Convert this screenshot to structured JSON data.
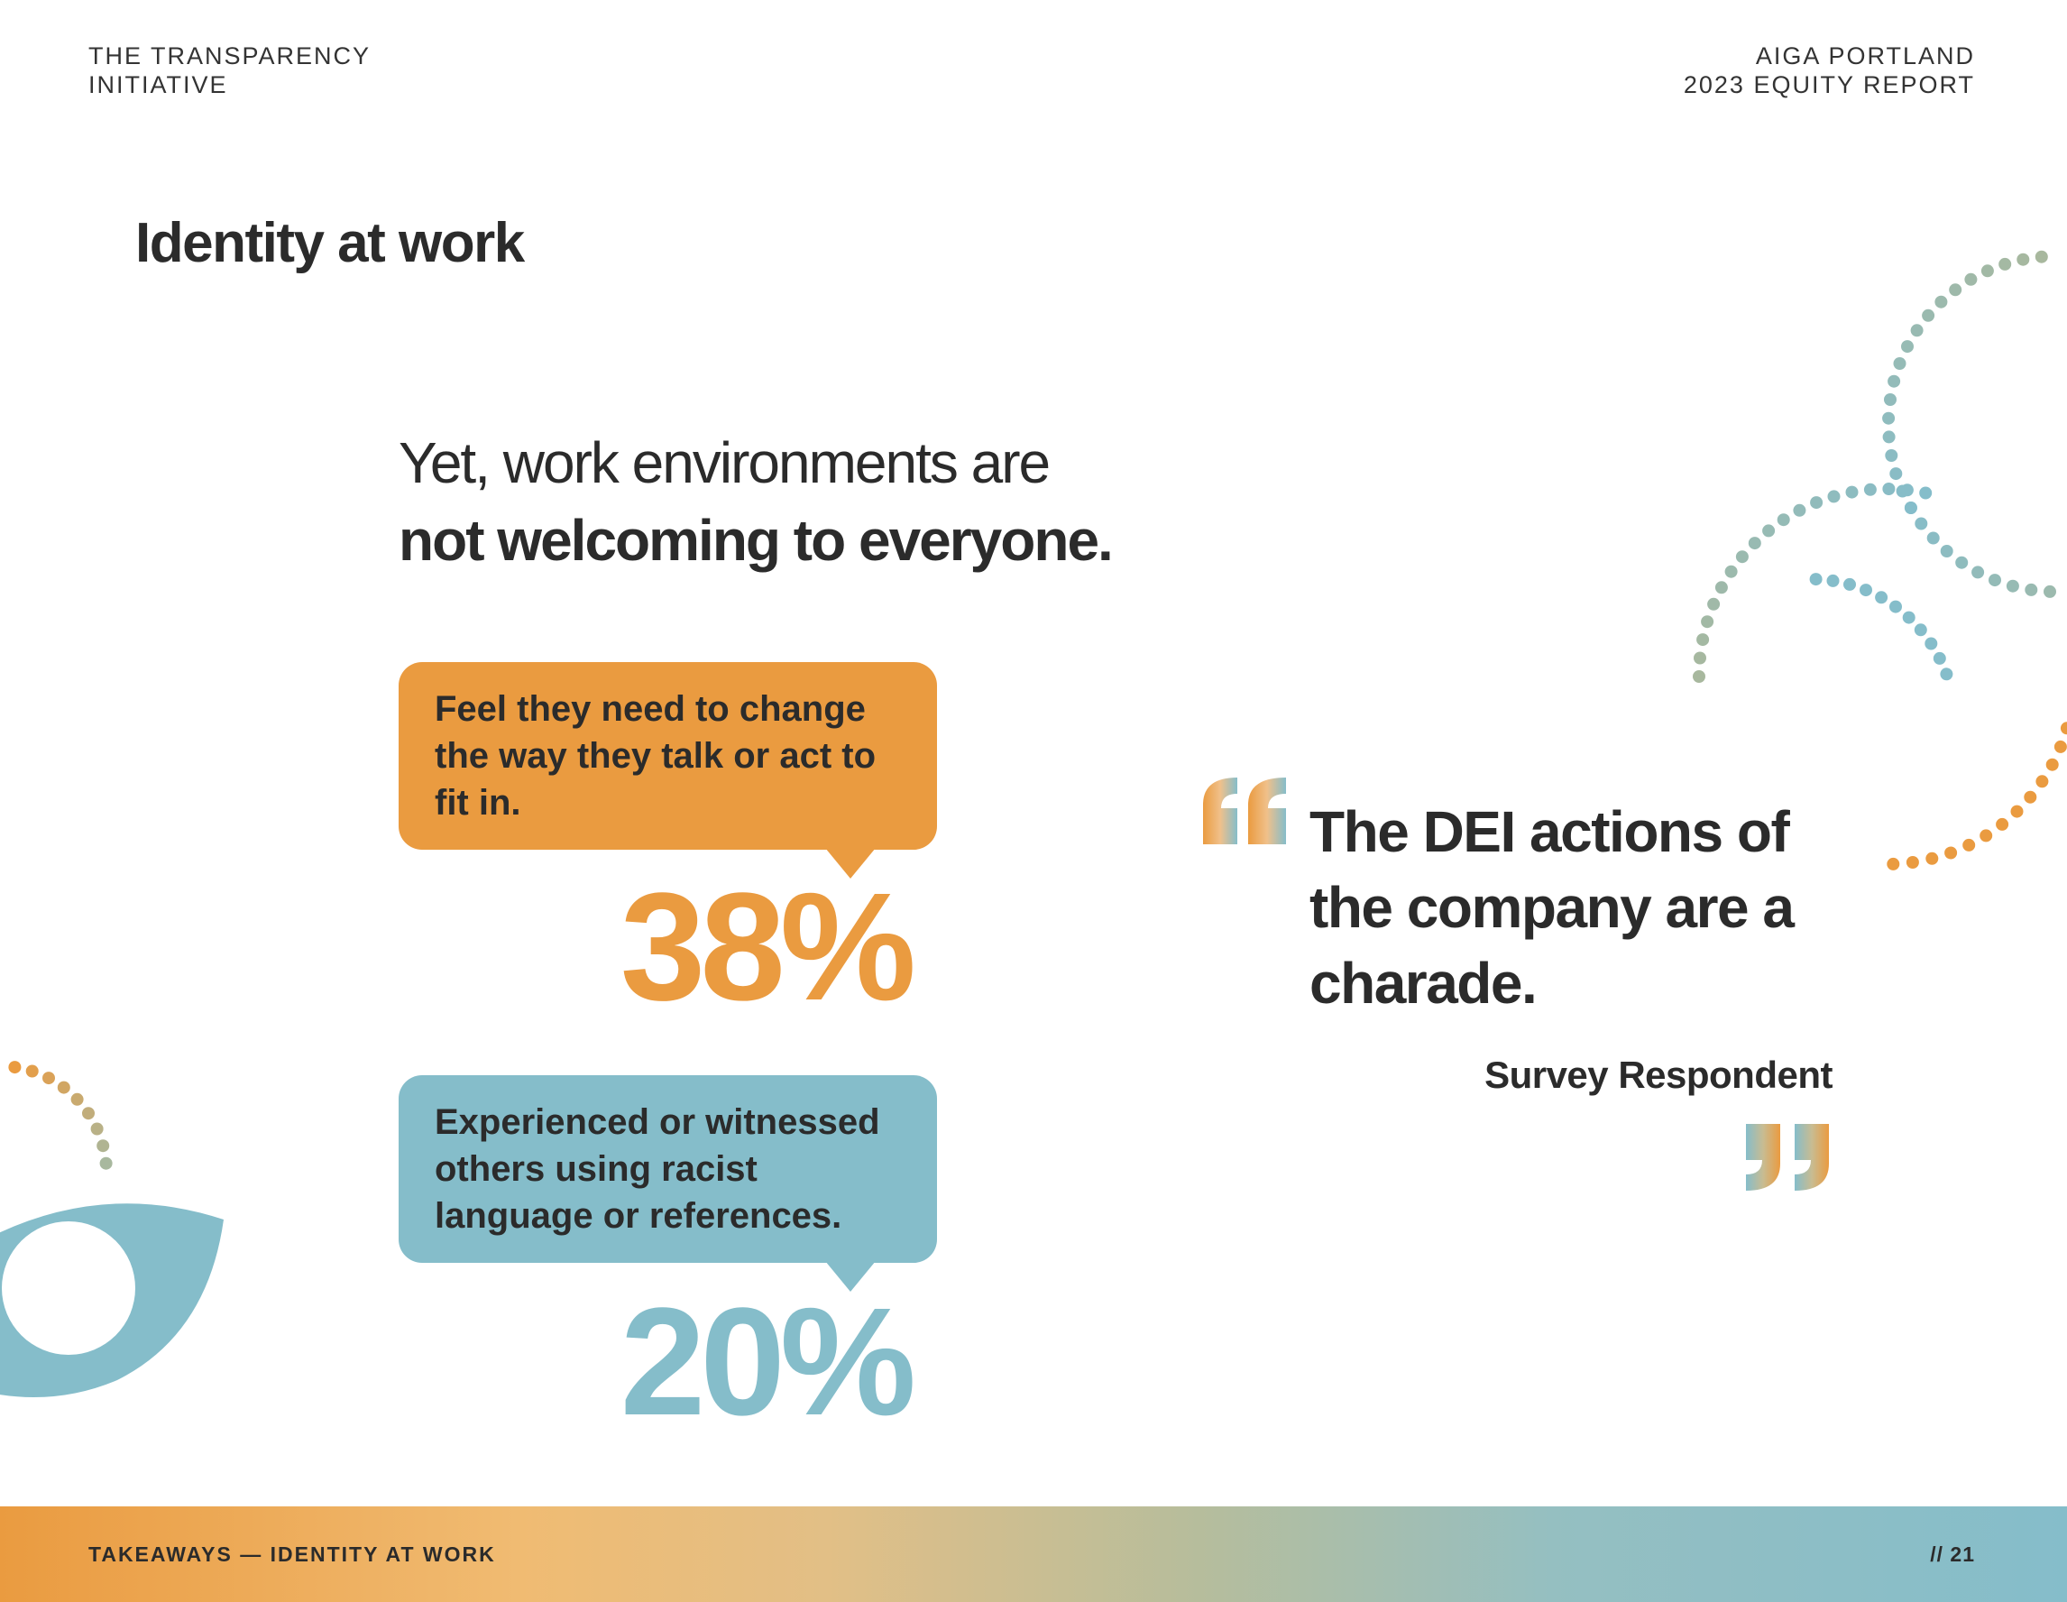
{
  "header": {
    "left_line1": "THE TRANSPARENCY",
    "left_line2": "INITIATIVE",
    "right_line1": "AIGA PORTLAND",
    "right_line2": "2023 EQUITY REPORT"
  },
  "page_title": "Identity at work",
  "lead": {
    "line1": "Yet, work environments are",
    "line2": "not welcoming to everyone."
  },
  "stats": [
    {
      "text": "Feel they need to change the way they talk or act to fit in.",
      "value": "38%"
    },
    {
      "text": "Experienced or witnessed others using racist language or references.",
      "value": "20%"
    }
  ],
  "quote": {
    "text": "The DEI actions of the company are a charade.",
    "source": "Survey Respondent"
  },
  "footer": {
    "section": "TAKEAWAYS — IDENTITY AT WORK",
    "page": "// 21"
  },
  "colors": {
    "orange": "#ea9b40",
    "blue": "#85bdca",
    "text": "#2b2b2b",
    "sage": "#a8b89e"
  },
  "icons": {
    "open_quote": "quote-open-icon",
    "close_quote": "quote-close-icon",
    "eye": "eye-icon"
  }
}
